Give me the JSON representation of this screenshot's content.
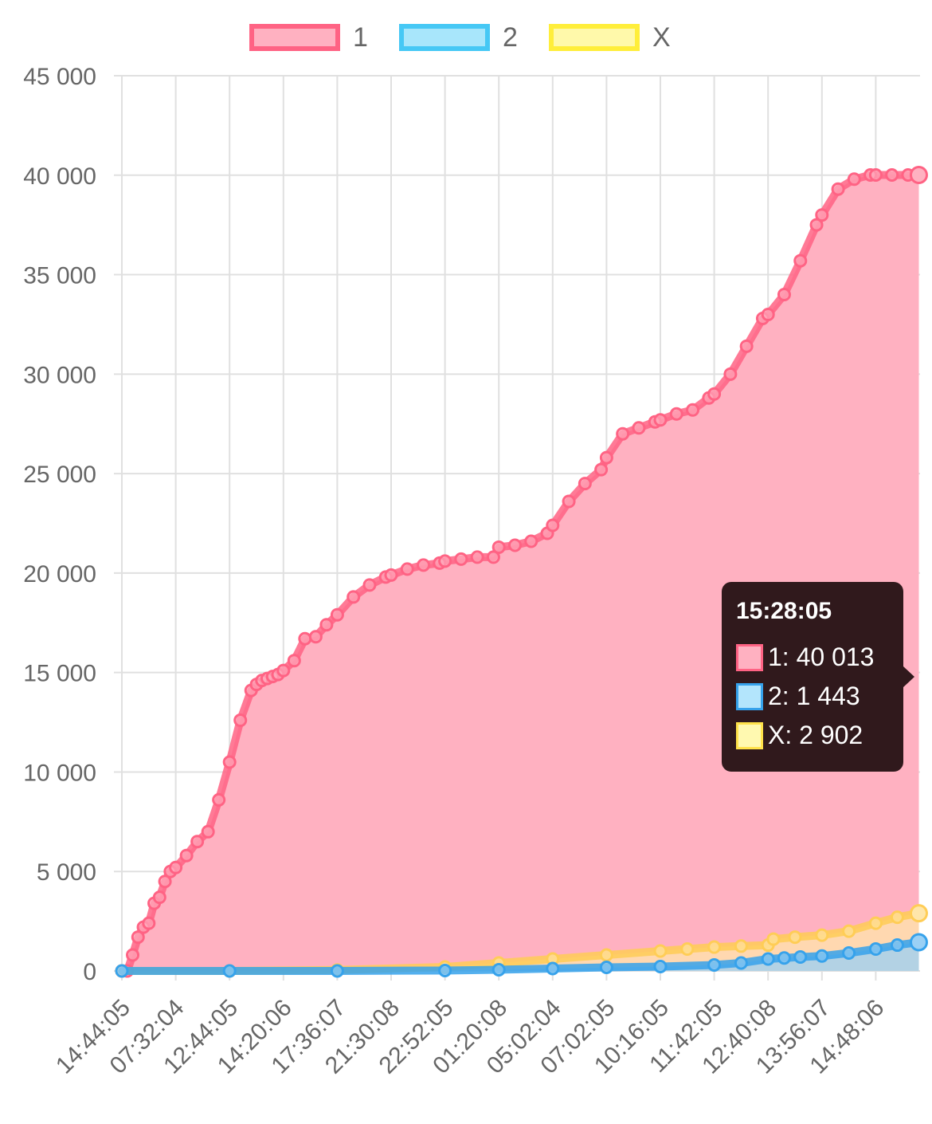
{
  "chart_data": {
    "type": "area",
    "title": "",
    "xlabel": "",
    "ylabel": "",
    "ylim": [
      0,
      45000
    ],
    "yticks": [
      "0",
      "5 000",
      "10 000",
      "15 000",
      "20 000",
      "25 000",
      "30 000",
      "35 000",
      "40 000",
      "45 000"
    ],
    "ytick_values": [
      0,
      5000,
      10000,
      15000,
      20000,
      25000,
      30000,
      35000,
      40000,
      45000
    ],
    "xticks": [
      "14:44:05",
      "07:32:04",
      "12:44:05",
      "14:20:06",
      "17:36:07",
      "21:30:08",
      "22:52:05",
      "01:20:08",
      "05:02:04",
      "07:02:05",
      "10:16:05",
      "11:42:05",
      "12:40:08",
      "13:56:07",
      "14:48:06"
    ],
    "grid": true,
    "legend_position": "top",
    "series": [
      {
        "name": "1",
        "color": "#ff6384",
        "fill": "#ffb1c1",
        "x": [
          0,
          0.1,
          0.2,
          0.3,
          0.4,
          0.5,
          0.6,
          0.7,
          0.8,
          0.9,
          1.0,
          1.2,
          1.4,
          1.6,
          1.8,
          2.0,
          2.2,
          2.4,
          2.5,
          2.6,
          2.7,
          2.8,
          2.9,
          3.0,
          3.2,
          3.4,
          3.6,
          3.8,
          4.0,
          4.3,
          4.6,
          4.9,
          5.0,
          5.3,
          5.6,
          5.9,
          6.0,
          6.3,
          6.6,
          6.9,
          7.0,
          7.3,
          7.6,
          7.9,
          8.0,
          8.3,
          8.6,
          8.9,
          9.0,
          9.3,
          9.6,
          9.9,
          10.0,
          10.3,
          10.6,
          10.9,
          11.0,
          11.3,
          11.6,
          11.9,
          12.0,
          12.3,
          12.6,
          12.9,
          13.0,
          13.3,
          13.6,
          13.9,
          14.0,
          14.3,
          14.6,
          14.8
        ],
        "values": [
          0,
          0,
          800,
          1700,
          2200,
          2400,
          3400,
          3700,
          4500,
          5000,
          5200,
          5800,
          6500,
          7000,
          8600,
          10500,
          12600,
          14100,
          14400,
          14600,
          14700,
          14800,
          14900,
          15100,
          15600,
          16700,
          16800,
          17400,
          17900,
          18800,
          19400,
          19800,
          19900,
          20200,
          20400,
          20500,
          20600,
          20700,
          20800,
          20800,
          21300,
          21400,
          21600,
          22000,
          22400,
          23600,
          24500,
          25200,
          25800,
          27000,
          27300,
          27600,
          27700,
          28000,
          28200,
          28800,
          29000,
          30000,
          31400,
          32800,
          33000,
          34000,
          35700,
          37500,
          38000,
          39300,
          39800,
          40013,
          40013,
          40013,
          40013,
          40013
        ]
      },
      {
        "name": "2",
        "color": "#36a2eb",
        "fill": "#9ad0f5",
        "x": [
          0,
          2,
          4,
          6,
          7,
          8,
          9,
          10,
          11,
          11.5,
          12,
          12.3,
          12.6,
          13,
          13.5,
          14,
          14.4,
          14.8
        ],
        "values": [
          0,
          0,
          0,
          20,
          60,
          120,
          180,
          220,
          300,
          400,
          600,
          650,
          700,
          750,
          900,
          1100,
          1300,
          1443
        ]
      },
      {
        "name": "X",
        "color": "#ffcd56",
        "fill": "#ffe6aa",
        "x": [
          0,
          2,
          4,
          6,
          7,
          8,
          9,
          10,
          10.5,
          11,
          11.5,
          12,
          12.1,
          12.5,
          13,
          13.5,
          14,
          14.4,
          14.8
        ],
        "values": [
          0,
          0,
          50,
          200,
          400,
          600,
          800,
          1000,
          1100,
          1200,
          1250,
          1300,
          1600,
          1700,
          1800,
          2000,
          2400,
          2700,
          2902
        ]
      }
    ]
  },
  "tooltip": {
    "title": "15:28:05",
    "rows": [
      {
        "label": "1: 40 013",
        "swatch": "#ffb1c1",
        "border": "#ff6384"
      },
      {
        "label": "2: 1 443",
        "swatch": "#b3e5fc",
        "border": "#36a2eb"
      },
      {
        "label": "X: 2 902",
        "swatch": "#fff9b0",
        "border": "#ffe24a"
      }
    ]
  },
  "legend": [
    {
      "label": "1",
      "fill": "#ffb1c1",
      "border": "#ff6384"
    },
    {
      "label": "2",
      "fill": "#a8e6fb",
      "border": "#46c8f5"
    },
    {
      "label": "X",
      "fill": "#fff9aa",
      "border": "#ffee3a"
    }
  ]
}
